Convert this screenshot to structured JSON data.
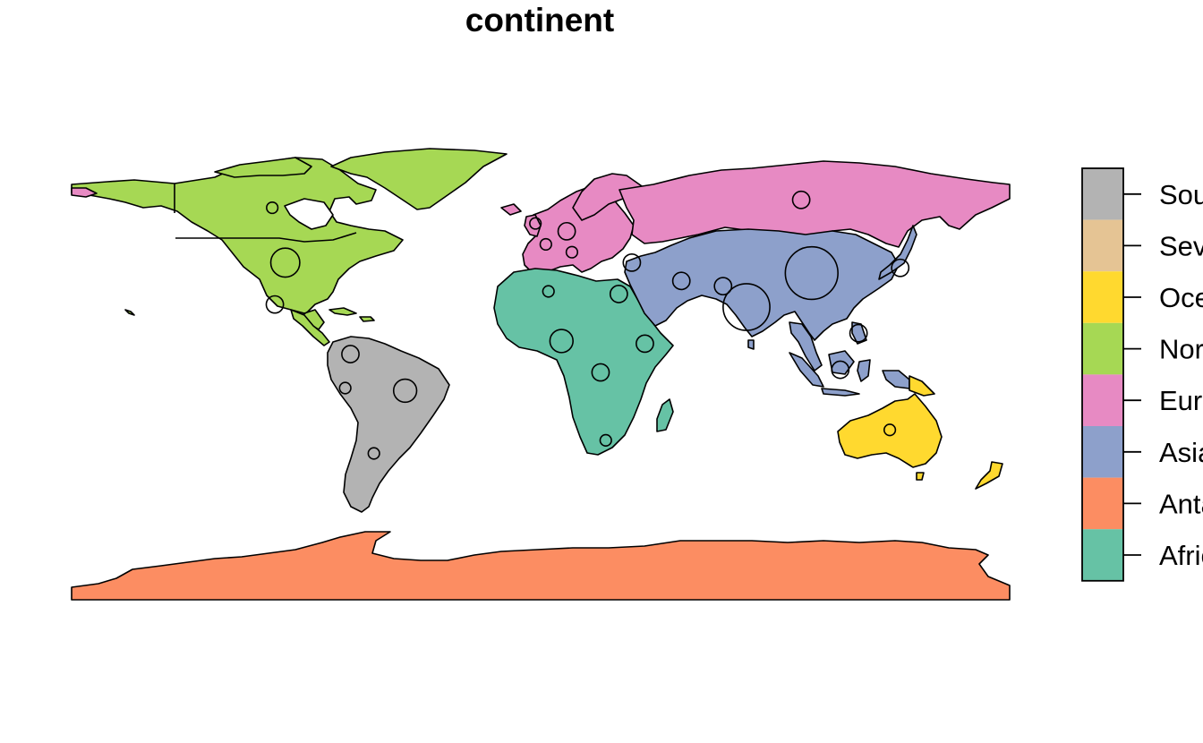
{
  "title": "continent",
  "legend": {
    "items": [
      {
        "label": "South America",
        "color": "#B3B3B3"
      },
      {
        "label": "Seven seas (open ocean)",
        "color": "#E5C494"
      },
      {
        "label": "Oceania",
        "color": "#FFD92F"
      },
      {
        "label": "North America",
        "color": "#A6D854"
      },
      {
        "label": "Europe",
        "color": "#E78AC3"
      },
      {
        "label": "Asia",
        "color": "#8DA0CB"
      },
      {
        "label": "Antarctica",
        "color": "#FC8D62"
      },
      {
        "label": "Africa",
        "color": "#66C2A5"
      }
    ]
  },
  "map": {
    "projection": "equirectangular",
    "lon_range": [
      -180,
      180
    ],
    "lat_range": [
      -90,
      84
    ],
    "regions": [
      {
        "name": "north-america",
        "continent": "North America"
      },
      {
        "name": "greenland",
        "continent": "North America"
      },
      {
        "name": "south-america",
        "continent": "South America"
      },
      {
        "name": "europe",
        "continent": "Europe"
      },
      {
        "name": "russia",
        "continent": "Europe"
      },
      {
        "name": "africa",
        "continent": "Africa"
      },
      {
        "name": "madagascar",
        "continent": "Africa"
      },
      {
        "name": "asia",
        "continent": "Asia"
      },
      {
        "name": "japan",
        "continent": "Asia"
      },
      {
        "name": "indonesia",
        "continent": "Asia"
      },
      {
        "name": "australia",
        "continent": "Oceania"
      },
      {
        "name": "new-zealand",
        "continent": "Oceania"
      },
      {
        "name": "antarctica",
        "continent": "Antarctica"
      }
    ],
    "symbols": [
      {
        "name": "usa",
        "lon": -98,
        "lat": 39,
        "size": 4
      },
      {
        "name": "mexico",
        "lon": -102,
        "lat": 23,
        "size": 2
      },
      {
        "name": "canada-nw",
        "lon": -103,
        "lat": 60,
        "size": 1
      },
      {
        "name": "brazil",
        "lon": -52,
        "lat": -10,
        "size": 3
      },
      {
        "name": "colombia",
        "lon": -73,
        "lat": 4,
        "size": 2
      },
      {
        "name": "peru",
        "lon": -75,
        "lat": -9,
        "size": 1
      },
      {
        "name": "argentina",
        "lon": -64,
        "lat": -34,
        "size": 1
      },
      {
        "name": "russia",
        "lon": 100,
        "lat": 63,
        "size": 2
      },
      {
        "name": "china",
        "lon": 104,
        "lat": 35,
        "size": 8
      },
      {
        "name": "india",
        "lon": 79,
        "lat": 22,
        "size": 7
      },
      {
        "name": "pakistan",
        "lon": 70,
        "lat": 30,
        "size": 2
      },
      {
        "name": "iran",
        "lon": 54,
        "lat": 32,
        "size": 2
      },
      {
        "name": "turkey",
        "lon": 35,
        "lat": 39,
        "size": 2
      },
      {
        "name": "japan",
        "lon": 138,
        "lat": 37,
        "size": 2
      },
      {
        "name": "indonesia",
        "lon": 115,
        "lat": -2,
        "size": 2
      },
      {
        "name": "philippines",
        "lon": 122,
        "lat": 12,
        "size": 2
      },
      {
        "name": "nigeria",
        "lon": 8,
        "lat": 9,
        "size": 3
      },
      {
        "name": "ethiopia",
        "lon": 40,
        "lat": 8,
        "size": 2
      },
      {
        "name": "egypt",
        "lon": 30,
        "lat": 27,
        "size": 2
      },
      {
        "name": "drc",
        "lon": 23,
        "lat": -3,
        "size": 2
      },
      {
        "name": "south-africa",
        "lon": 25,
        "lat": -29,
        "size": 1
      },
      {
        "name": "algeria",
        "lon": 3,
        "lat": 28,
        "size": 1
      },
      {
        "name": "germany",
        "lon": 10,
        "lat": 51,
        "size": 2
      },
      {
        "name": "france",
        "lon": 2,
        "lat": 46,
        "size": 1
      },
      {
        "name": "uk",
        "lon": -2,
        "lat": 54,
        "size": 1
      },
      {
        "name": "italy",
        "lon": 12,
        "lat": 43,
        "size": 1
      },
      {
        "name": "australia",
        "lon": 134,
        "lat": -25,
        "size": 1
      }
    ]
  }
}
